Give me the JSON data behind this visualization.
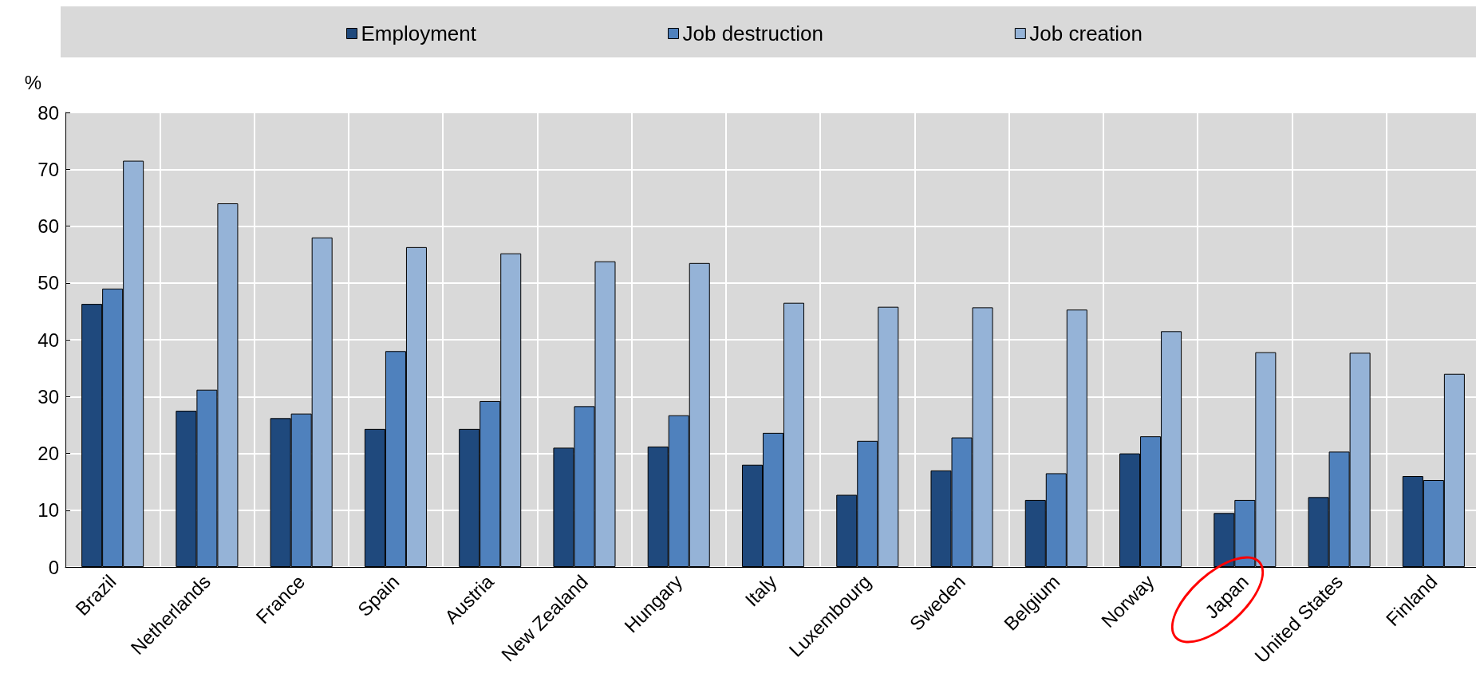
{
  "chart_data": {
    "type": "bar",
    "ylabel": "%",
    "categories": [
      "Brazil",
      "Netherlands",
      "France",
      "Spain",
      "Austria",
      "New Zealand",
      "Hungary",
      "Italy",
      "Luxembourg",
      "Sweden",
      "Belgium",
      "Norway",
      "Japan",
      "United States",
      "Finland"
    ],
    "series": [
      {
        "name": "Employment",
        "color": "#1f497d",
        "values": [
          46.3,
          27.5,
          26.2,
          24.3,
          24.3,
          21,
          21.2,
          18,
          12.7,
          17,
          11.8,
          20,
          9.5,
          12.3,
          16
        ]
      },
      {
        "name": "Job destruction",
        "color": "#4f81bd",
        "values": [
          49,
          31.2,
          27,
          38,
          29.2,
          28.3,
          26.7,
          23.6,
          22.2,
          22.8,
          16.5,
          23,
          11.8,
          20.3,
          15.3
        ]
      },
      {
        "name": "Job creation",
        "color": "#95b3d7",
        "values": [
          71.5,
          64,
          58,
          56.3,
          55.2,
          53.8,
          53.5,
          46.5,
          45.8,
          45.7,
          45.3,
          41.5,
          37.8,
          37.7,
          34
        ]
      }
    ],
    "ylim": [
      0,
      80
    ],
    "yticks": [
      0,
      10,
      20,
      30,
      40,
      50,
      60,
      70,
      80
    ],
    "grid": true,
    "legend": "top"
  }
}
